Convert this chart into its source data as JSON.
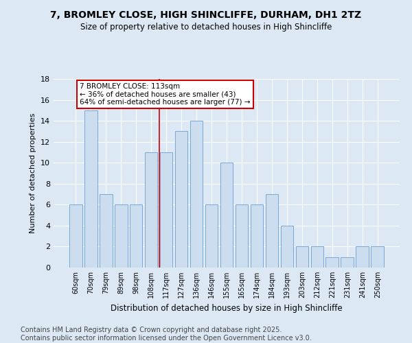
{
  "title1": "7, BROMLEY CLOSE, HIGH SHINCLIFFE, DURHAM, DH1 2TZ",
  "title2": "Size of property relative to detached houses in High Shincliffe",
  "xlabel": "Distribution of detached houses by size in High Shincliffe",
  "ylabel": "Number of detached properties",
  "footnote": "Contains HM Land Registry data © Crown copyright and database right 2025.\nContains public sector information licensed under the Open Government Licence v3.0.",
  "categories": [
    "60sqm",
    "70sqm",
    "79sqm",
    "89sqm",
    "98sqm",
    "108sqm",
    "117sqm",
    "127sqm",
    "136sqm",
    "146sqm",
    "155sqm",
    "165sqm",
    "174sqm",
    "184sqm",
    "193sqm",
    "203sqm",
    "212sqm",
    "221sqm",
    "231sqm",
    "241sqm",
    "250sqm"
  ],
  "values": [
    6,
    15,
    7,
    6,
    6,
    11,
    11,
    13,
    14,
    6,
    10,
    6,
    6,
    7,
    4,
    2,
    2,
    1,
    1,
    2,
    2
  ],
  "bar_color": "#cdddf0",
  "bar_edge_color": "#7aa8d4",
  "annotation_text": "7 BROMLEY CLOSE: 113sqm\n← 36% of detached houses are smaller (43)\n64% of semi-detached houses are larger (77) →",
  "annotation_box_color": "#ffffff",
  "annotation_border_color": "#cc0000",
  "bg_color": "#dce9f5",
  "ylim": [
    0,
    18
  ],
  "yticks": [
    0,
    2,
    4,
    6,
    8,
    10,
    12,
    14,
    16,
    18
  ],
  "red_line_index": 5.56,
  "footnote_fontsize": 7,
  "title1_fontsize": 10,
  "title2_fontsize": 8.5
}
